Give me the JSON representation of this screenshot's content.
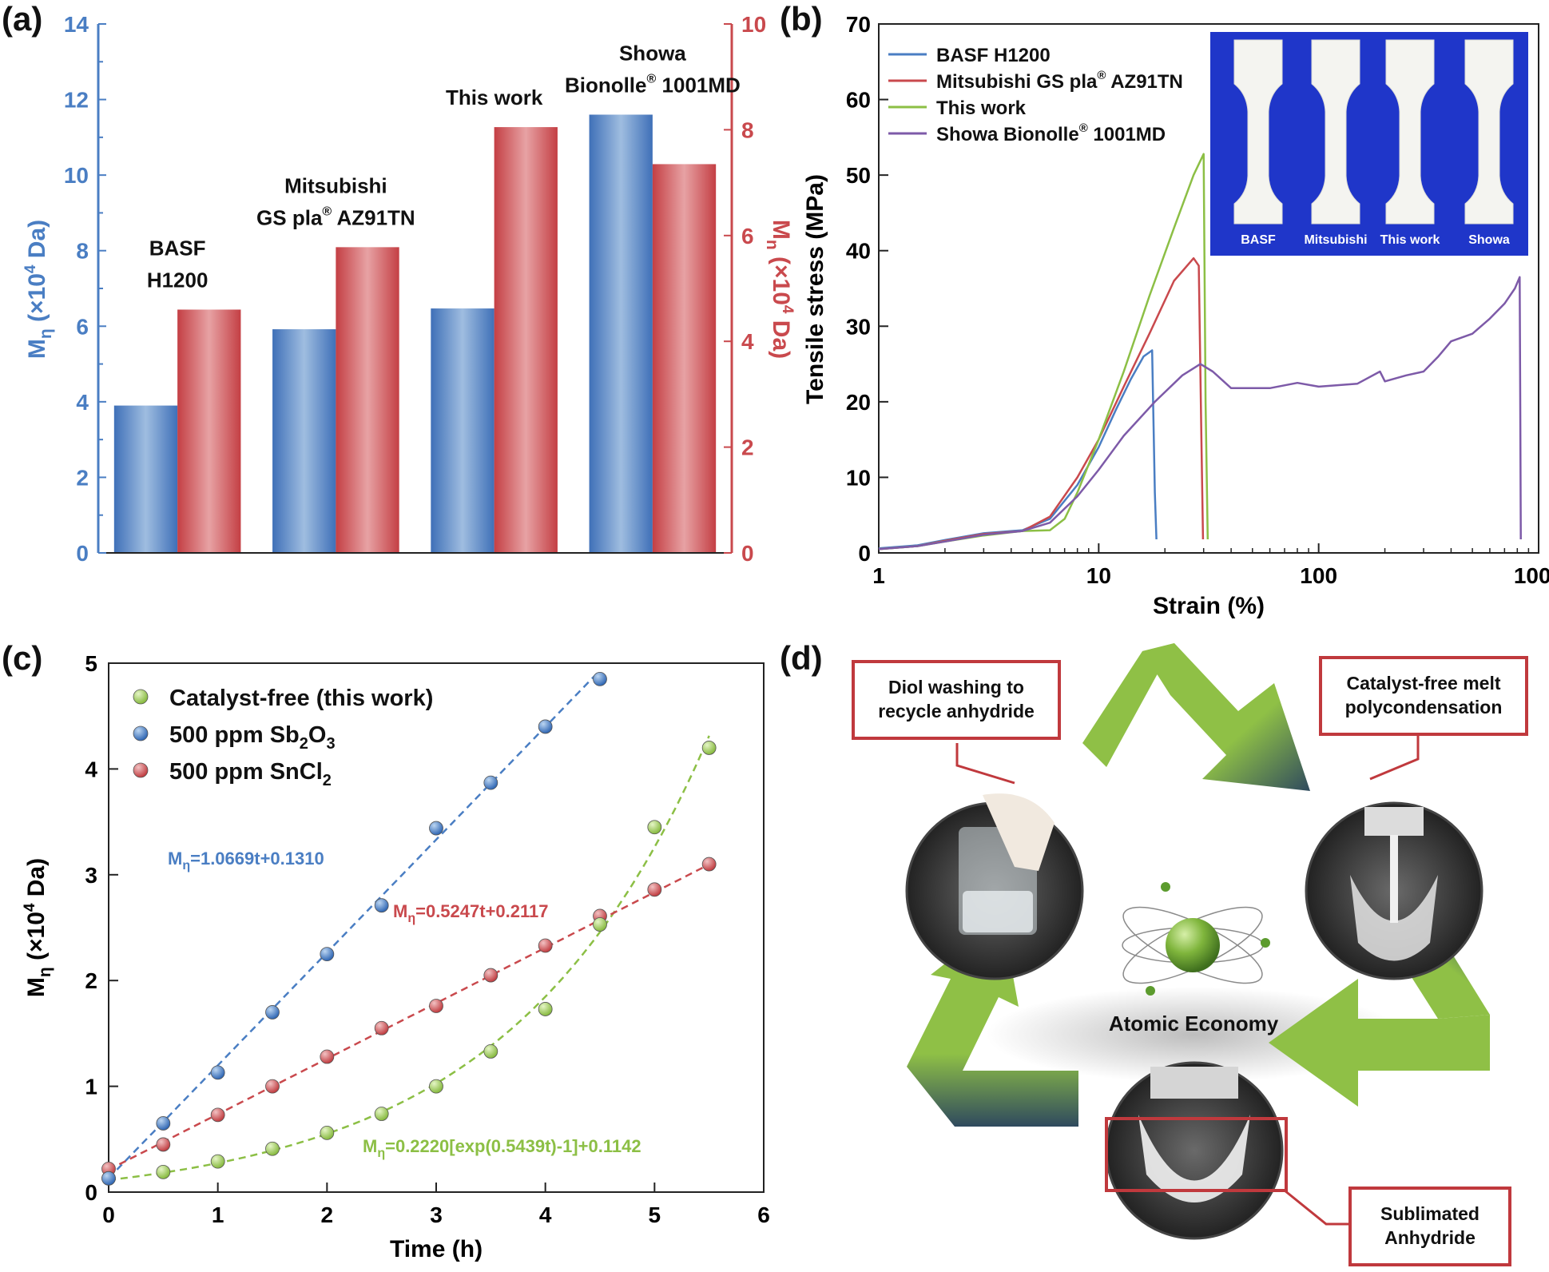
{
  "panels": {
    "a": "(a)",
    "b": "(b)",
    "c": "(c)",
    "d": "(d)"
  },
  "colors": {
    "blue": "#4a7ec3",
    "red": "#c9494d",
    "green": "#8cbf45",
    "purple": "#7d5aa8",
    "box": "#c0393d"
  },
  "chart_data": [
    {
      "panel": "a",
      "type": "bar",
      "categories": [
        "BASF H1200",
        "Mitsubishi GS pla® AZ91TN",
        "This work",
        "Showa Bionolle® 1001MD"
      ],
      "category_labels": [
        [
          "BASF",
          "H1200"
        ],
        [
          "Mitsubishi",
          "GS pla® AZ91TN"
        ],
        [
          "This work"
        ],
        [
          "Showa",
          "Bionolle® 1001MD"
        ]
      ],
      "series": [
        {
          "axis": "left",
          "values": [
            3.9,
            5.92,
            6.47,
            11.6
          ]
        },
        {
          "axis": "right",
          "values": [
            4.6,
            5.78,
            8.05,
            7.35
          ]
        }
      ],
      "ylabel_left": "Mη (×10⁴ Da)",
      "ylabel_right": "Mn (×10⁴ Da)",
      "ylim_left": [
        0,
        14
      ],
      "ylim_right": [
        0,
        10
      ],
      "yticks_left": [
        "0",
        "2",
        "4",
        "6",
        "8",
        "10",
        "12",
        "14"
      ],
      "yticks_right": [
        "0",
        "2",
        "4",
        "6",
        "8",
        "10"
      ]
    },
    {
      "panel": "b",
      "type": "line",
      "xscale": "log",
      "xlabel": "Strain (%)",
      "ylabel": "Tensile stress (MPa)",
      "xlim": [
        1,
        1000
      ],
      "ylim": [
        0,
        70
      ],
      "xticks": [
        "1",
        "10",
        "100",
        "1000"
      ],
      "yticks": [
        "0",
        "10",
        "20",
        "30",
        "40",
        "50",
        "60",
        "70"
      ],
      "legend_position": "top-left",
      "series": [
        {
          "name": "BASF H1200",
          "x": [
            1,
            1.5,
            2,
            3,
            4.5,
            6,
            8,
            10,
            12,
            14,
            16,
            17.5,
            18,
            18.3
          ],
          "y": [
            0.6,
            1.0,
            1.7,
            2.6,
            3.0,
            4.5,
            9,
            14,
            19,
            23,
            26,
            26.8,
            8,
            1.8
          ]
        },
        {
          "name": "Mitsubishi GS pla® AZ91TN",
          "x": [
            1,
            1.5,
            2,
            3,
            4.5,
            6,
            8,
            10,
            13,
            17,
            22,
            27,
            28.5,
            29.3,
            29.8
          ],
          "y": [
            0.5,
            0.9,
            1.6,
            2.5,
            2.9,
            4.8,
            10,
            15,
            22,
            29,
            36,
            39,
            38,
            15,
            1.8
          ]
        },
        {
          "name": "This work",
          "x": [
            1,
            1.5,
            2,
            3,
            4.5,
            6,
            7,
            8,
            10,
            13,
            17,
            22,
            27,
            30,
            30.6,
            31.3
          ],
          "y": [
            0.5,
            0.9,
            1.5,
            2.3,
            2.9,
            3.0,
            4.5,
            8,
            15,
            24,
            34,
            43,
            50,
            52.8,
            20,
            1.8
          ]
        },
        {
          "name": "Showa Bionolle® 1001MD",
          "x": [
            1,
            1.5,
            2,
            3,
            4.5,
            6,
            8,
            10,
            13,
            18,
            24,
            29,
            33,
            40,
            60,
            80,
            100,
            150,
            190,
            200,
            250,
            300,
            350,
            400,
            500,
            600,
            700,
            780,
            820,
            825,
            830
          ],
          "y": [
            0.5,
            0.9,
            1.5,
            2.4,
            2.9,
            4.0,
            7.5,
            11,
            15.5,
            20,
            23.5,
            25,
            24,
            21.8,
            21.8,
            22.5,
            22,
            22.4,
            24,
            22.7,
            23.5,
            24,
            26,
            28,
            29,
            31,
            33,
            35,
            36.5,
            20,
            1.8
          ]
        }
      ],
      "inset": {
        "labels": [
          "BASF",
          "Mitsubishi",
          "This work",
          "Showa"
        ]
      }
    },
    {
      "panel": "c",
      "type": "scatter",
      "xlabel": "Time (h)",
      "ylabel": "Mη (×10⁴ Da)",
      "xlim": [
        0,
        6
      ],
      "ylim": [
        0,
        5
      ],
      "xticks": [
        "0",
        "1",
        "2",
        "3",
        "4",
        "5",
        "6"
      ],
      "yticks": [
        "0",
        "1",
        "2",
        "3",
        "4",
        "5"
      ],
      "legend_position": "top-left",
      "series": [
        {
          "name": "Catalyst-free (this work)",
          "x": [
            0,
            0.5,
            1,
            1.5,
            2,
            2.5,
            3,
            3.5,
            4,
            4.5,
            5,
            5.5
          ],
          "y": [
            0.13,
            0.19,
            0.29,
            0.41,
            0.56,
            0.74,
            1.0,
            1.33,
            1.73,
            2.53,
            3.45,
            4.2
          ],
          "fit": "Mη=0.2220[exp(0.5439t)-1]+0.1142"
        },
        {
          "name": "500 ppm Sb₂O₃",
          "x": [
            0,
            0.5,
            1,
            1.5,
            2,
            2.5,
            3,
            3.5,
            4,
            4.5
          ],
          "y": [
            0.13,
            0.65,
            1.13,
            1.7,
            2.25,
            2.71,
            3.44,
            3.87,
            4.4,
            4.85
          ],
          "fit": "Mη=1.0669t+0.1310"
        },
        {
          "name": "500 ppm SnCl₂",
          "x": [
            0,
            0.5,
            1,
            1.5,
            2,
            2.5,
            3,
            3.5,
            4,
            4.5,
            5,
            5.5
          ],
          "y": [
            0.22,
            0.45,
            0.73,
            1.0,
            1.28,
            1.55,
            1.76,
            2.05,
            2.33,
            2.61,
            2.86,
            3.1
          ],
          "fit": "Mη=0.5247t+0.2117"
        }
      ]
    }
  ],
  "diagram": {
    "boxes": [
      [
        "Diol washing to",
        "recycle anhydride"
      ],
      [
        "Catalyst-free melt",
        "polycondensation"
      ],
      [
        "Sublimated",
        "Anhydride"
      ]
    ],
    "center_label": "Atomic Economy"
  }
}
